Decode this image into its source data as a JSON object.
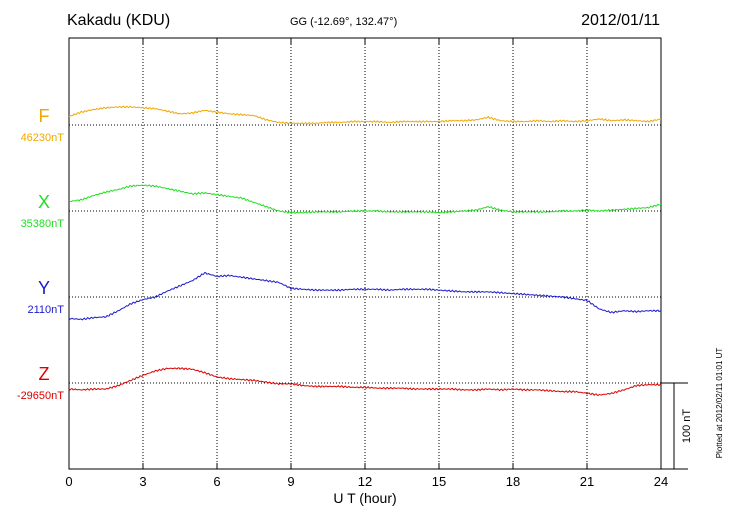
{
  "header": {
    "station": "Kakadu (KDU)",
    "coords": "GG (-12.69°, 132.47°)",
    "date": "2012/01/11"
  },
  "side_note": "Plotted at 2012/02/11 01:01 UT",
  "scale_bar_label": "100 nT",
  "chart_data": {
    "type": "line",
    "title": "Kakadu (KDU)",
    "xlabel": "U T (hour)",
    "ylabel": "",
    "xlim": [
      0,
      24
    ],
    "xticks": [
      0,
      3,
      6,
      9,
      12,
      15,
      18,
      21,
      24
    ],
    "grid": true,
    "scale_nT_per_bar": 100,
    "series": [
      {
        "name": "F",
        "baseline_label": "46230nT",
        "baseline_nT": 46230,
        "color": "#f0a800",
        "x": [
          0,
          0.5,
          1,
          1.5,
          2,
          2.5,
          3,
          3.5,
          4,
          4.5,
          5,
          5.5,
          6,
          6.5,
          7,
          7.5,
          8,
          8.5,
          9,
          9.5,
          10,
          10.5,
          11,
          11.5,
          12,
          12.5,
          13,
          13.5,
          14,
          14.5,
          15,
          15.5,
          16,
          16.5,
          17,
          17.5,
          18,
          18.5,
          19,
          19.5,
          20,
          20.5,
          21,
          21.5,
          22,
          22.5,
          23,
          23.5,
          24
        ],
        "y": [
          10,
          15,
          18,
          20,
          21,
          21,
          20,
          19,
          16,
          13,
          14,
          17,
          15,
          13,
          12,
          11,
          6,
          3,
          2,
          2,
          2,
          3,
          3,
          4,
          4,
          4,
          3,
          4,
          4,
          4,
          4,
          5,
          5,
          6,
          9,
          5,
          4,
          4,
          5,
          4,
          5,
          4,
          5,
          7,
          5,
          6,
          5,
          4,
          7
        ]
      },
      {
        "name": "X",
        "baseline_label": "35380nT",
        "baseline_nT": 35380,
        "color": "#22dd22",
        "x": [
          0,
          0.5,
          1,
          1.5,
          2,
          2.5,
          3,
          3.5,
          4,
          4.5,
          5,
          5.5,
          6,
          6.5,
          7,
          7.5,
          8,
          8.5,
          9,
          9.5,
          10,
          10.5,
          11,
          11.5,
          12,
          12.5,
          13,
          13.5,
          14,
          14.5,
          15,
          15.5,
          16,
          16.5,
          17,
          17.5,
          18,
          18.5,
          19,
          19.5,
          20,
          20.5,
          21,
          21.5,
          22,
          22.5,
          23,
          23.5,
          24
        ],
        "y": [
          11,
          13,
          18,
          22,
          25,
          29,
          30,
          29,
          26,
          23,
          20,
          21,
          19,
          17,
          15,
          10,
          5,
          0,
          -2,
          -2,
          -1,
          -1,
          -1,
          0,
          0,
          0,
          -1,
          -1,
          -1,
          -1,
          -2,
          -1,
          0,
          1,
          5,
          1,
          -1,
          -1,
          -1,
          -1,
          0,
          0,
          1,
          0,
          1,
          2,
          3,
          4,
          8
        ]
      },
      {
        "name": "Y",
        "baseline_label": "2110nT",
        "baseline_nT": 2110,
        "color": "#1a1acc",
        "x": [
          0,
          0.5,
          1,
          1.5,
          2,
          2.5,
          3,
          3.5,
          4,
          4.5,
          5,
          5.5,
          6,
          6.5,
          7,
          7.5,
          8,
          8.5,
          9,
          9.5,
          10,
          10.5,
          11,
          11.5,
          12,
          12.5,
          13,
          13.5,
          14,
          14.5,
          15,
          15.5,
          16,
          16.5,
          17,
          17.5,
          18,
          18.5,
          19,
          19.5,
          20,
          20.5,
          21,
          21.5,
          22,
          22.5,
          23,
          23.5,
          24
        ],
        "y": [
          -25,
          -26,
          -24,
          -23,
          -16,
          -8,
          -3,
          0,
          7,
          13,
          19,
          28,
          24,
          25,
          23,
          21,
          19,
          17,
          10,
          9,
          8,
          8,
          8,
          9,
          9,
          9,
          8,
          9,
          9,
          9,
          8,
          7,
          6,
          6,
          6,
          5,
          4,
          3,
          2,
          1,
          0,
          -2,
          -4,
          -14,
          -18,
          -16,
          -17,
          -16,
          -16
        ]
      },
      {
        "name": "Z",
        "baseline_label": "-29650nT",
        "baseline_nT": -29650,
        "color": "#dd0000",
        "x": [
          0,
          0.5,
          1,
          1.5,
          2,
          2.5,
          3,
          3.5,
          4,
          4.5,
          5,
          5.5,
          6,
          6.5,
          7,
          7.5,
          8,
          8.5,
          9,
          9.5,
          10,
          10.5,
          11,
          11.5,
          12,
          12.5,
          13,
          13.5,
          14,
          14.5,
          15,
          15.5,
          16,
          16.5,
          17,
          17.5,
          18,
          18.5,
          19,
          19.5,
          20,
          20.5,
          21,
          21.5,
          22,
          22.5,
          23,
          23.5,
          24
        ],
        "y": [
          -7,
          -8,
          -7,
          -7,
          -3,
          3,
          9,
          14,
          17,
          17,
          16,
          12,
          7,
          5,
          4,
          3,
          1,
          -1,
          -1,
          -3,
          -4,
          -4,
          -4,
          -5,
          -5,
          -6,
          -6,
          -6,
          -7,
          -7,
          -7,
          -7,
          -8,
          -8,
          -7,
          -8,
          -7,
          -8,
          -8,
          -9,
          -10,
          -10,
          -12,
          -14,
          -12,
          -8,
          -3,
          -2,
          -2
        ]
      }
    ]
  }
}
